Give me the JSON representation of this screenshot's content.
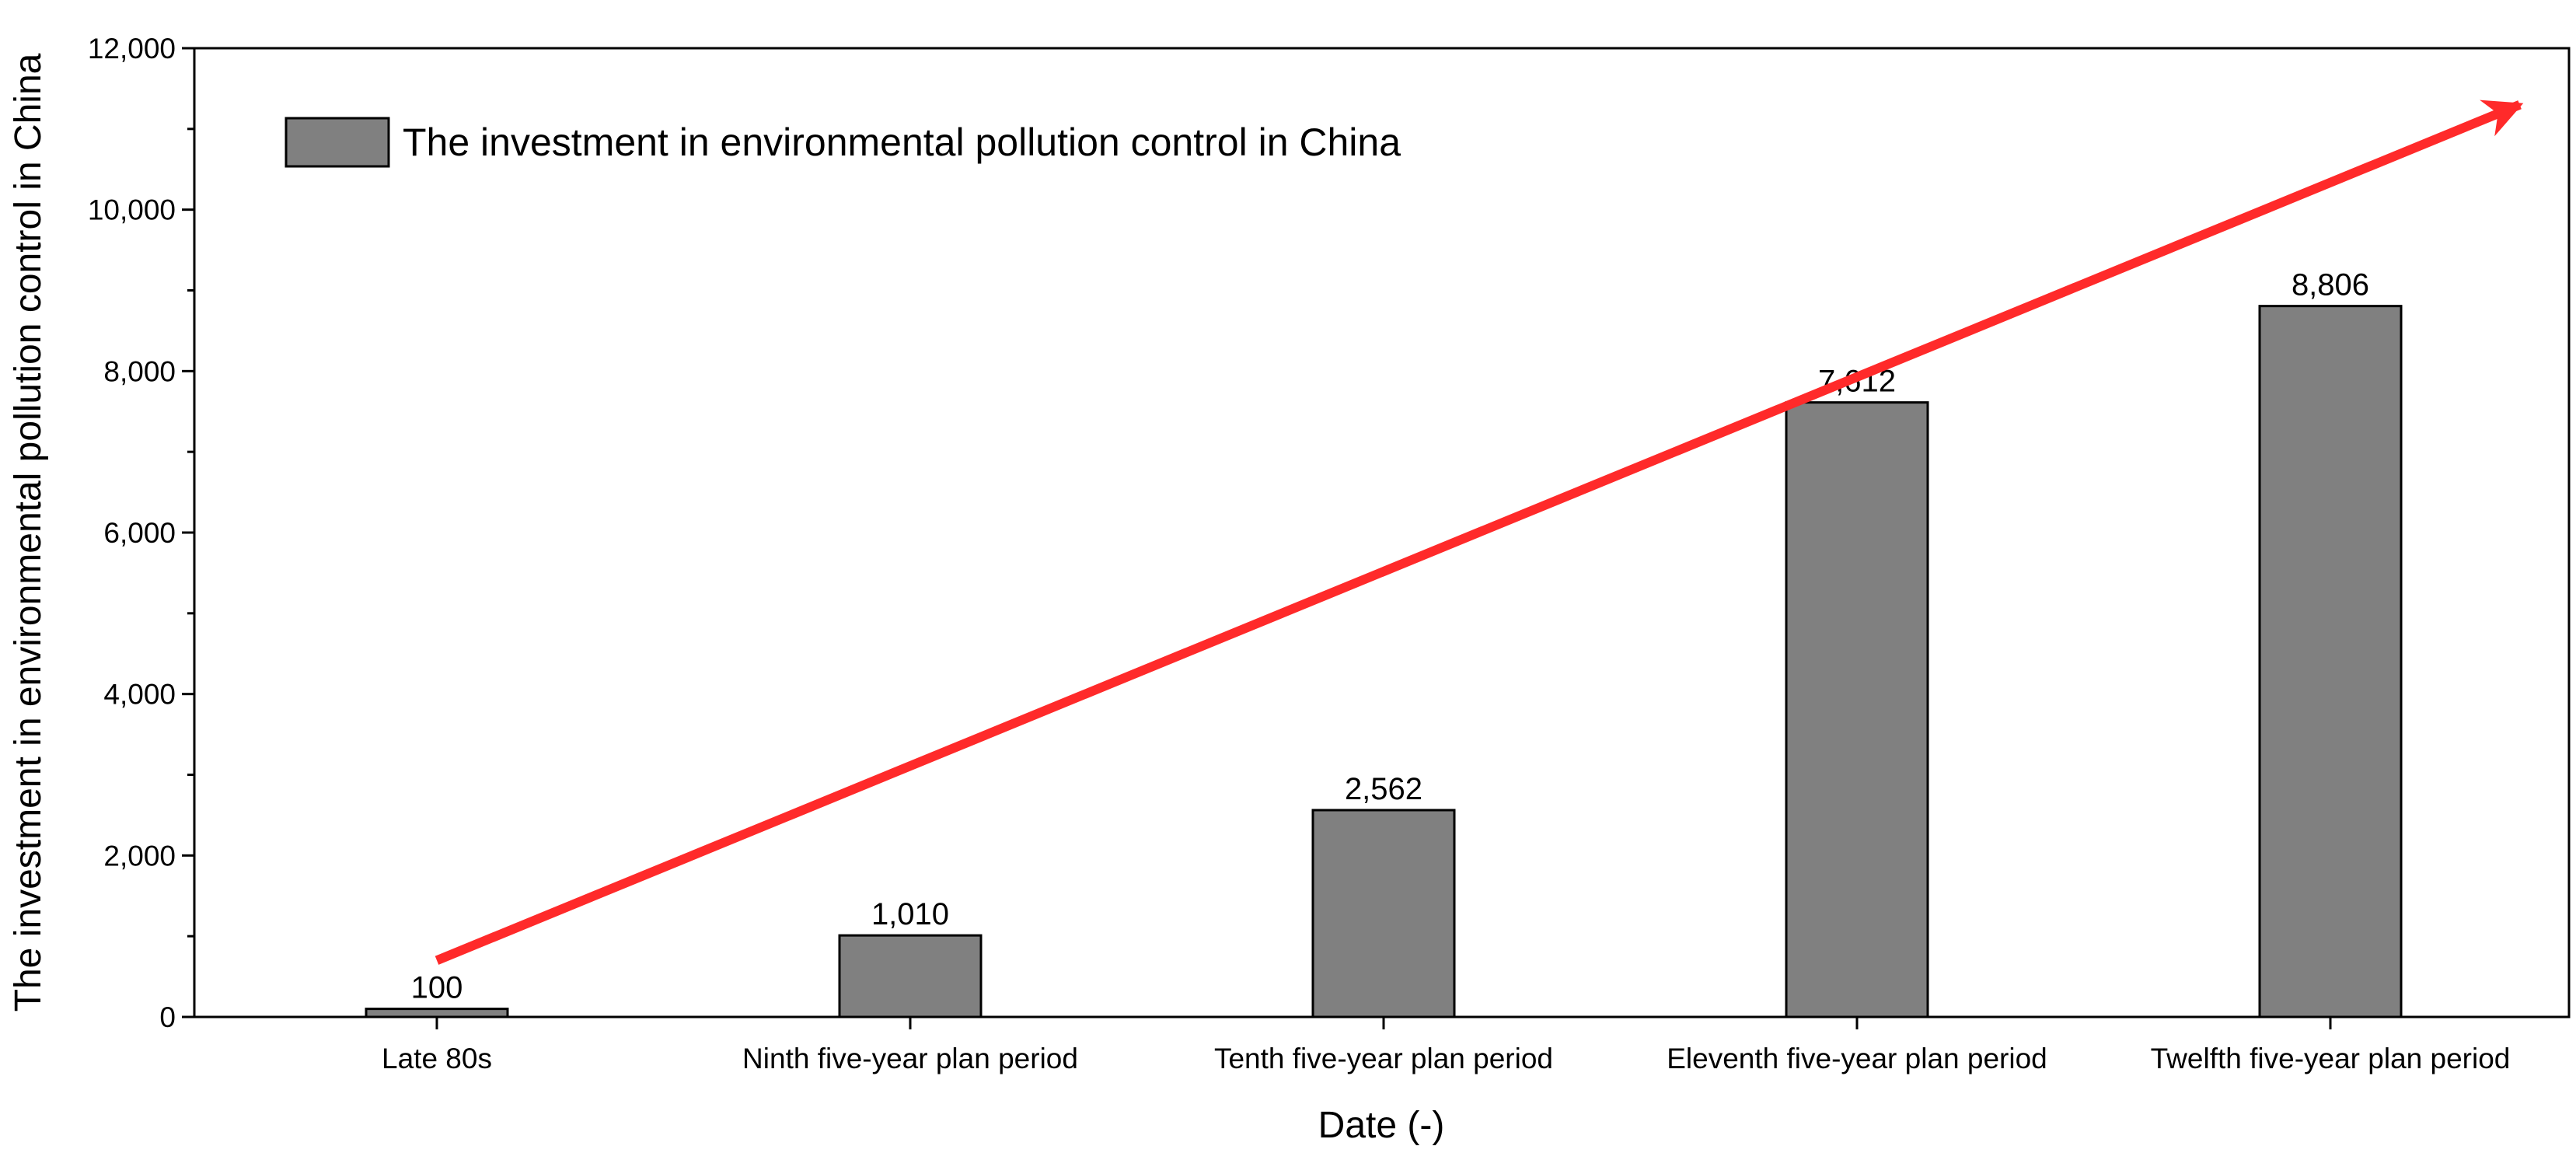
{
  "chart_data": {
    "type": "bar",
    "title": "",
    "xlabel": "Date (-)",
    "ylabel": "The investment in environmental pollution control in China",
    "categories": [
      "Late 80s",
      "Ninth five-year plan period",
      "Tenth five-year plan period",
      "Eleventh five-year plan period",
      "Twelfth five-year plan period"
    ],
    "series": [
      {
        "name": "The investment in environmental pollution control in China",
        "values": [
          100,
          1010,
          2562,
          7612,
          8806
        ],
        "value_labels": [
          "100",
          "1,010",
          "2,562",
          "7,612",
          "8,806"
        ]
      }
    ],
    "ylim": [
      0,
      12000
    ],
    "yticks": [
      0,
      2000,
      4000,
      6000,
      8000,
      10000,
      12000
    ],
    "ytick_labels": [
      "0",
      "2,000",
      "4,000",
      "6,000",
      "8,000",
      "10,000",
      "12,000"
    ],
    "grid": false,
    "legend_position": "top-left",
    "annotation": {
      "type": "trend-arrow",
      "from": {
        "category_index": 0,
        "y": 700
      },
      "to": {
        "category_index": 4.4,
        "y": 11300
      }
    },
    "colors": {
      "bar_fill": "#808080",
      "bar_stroke": "#000000",
      "arrow": "#ff2a2a",
      "axis": "#000000"
    }
  }
}
